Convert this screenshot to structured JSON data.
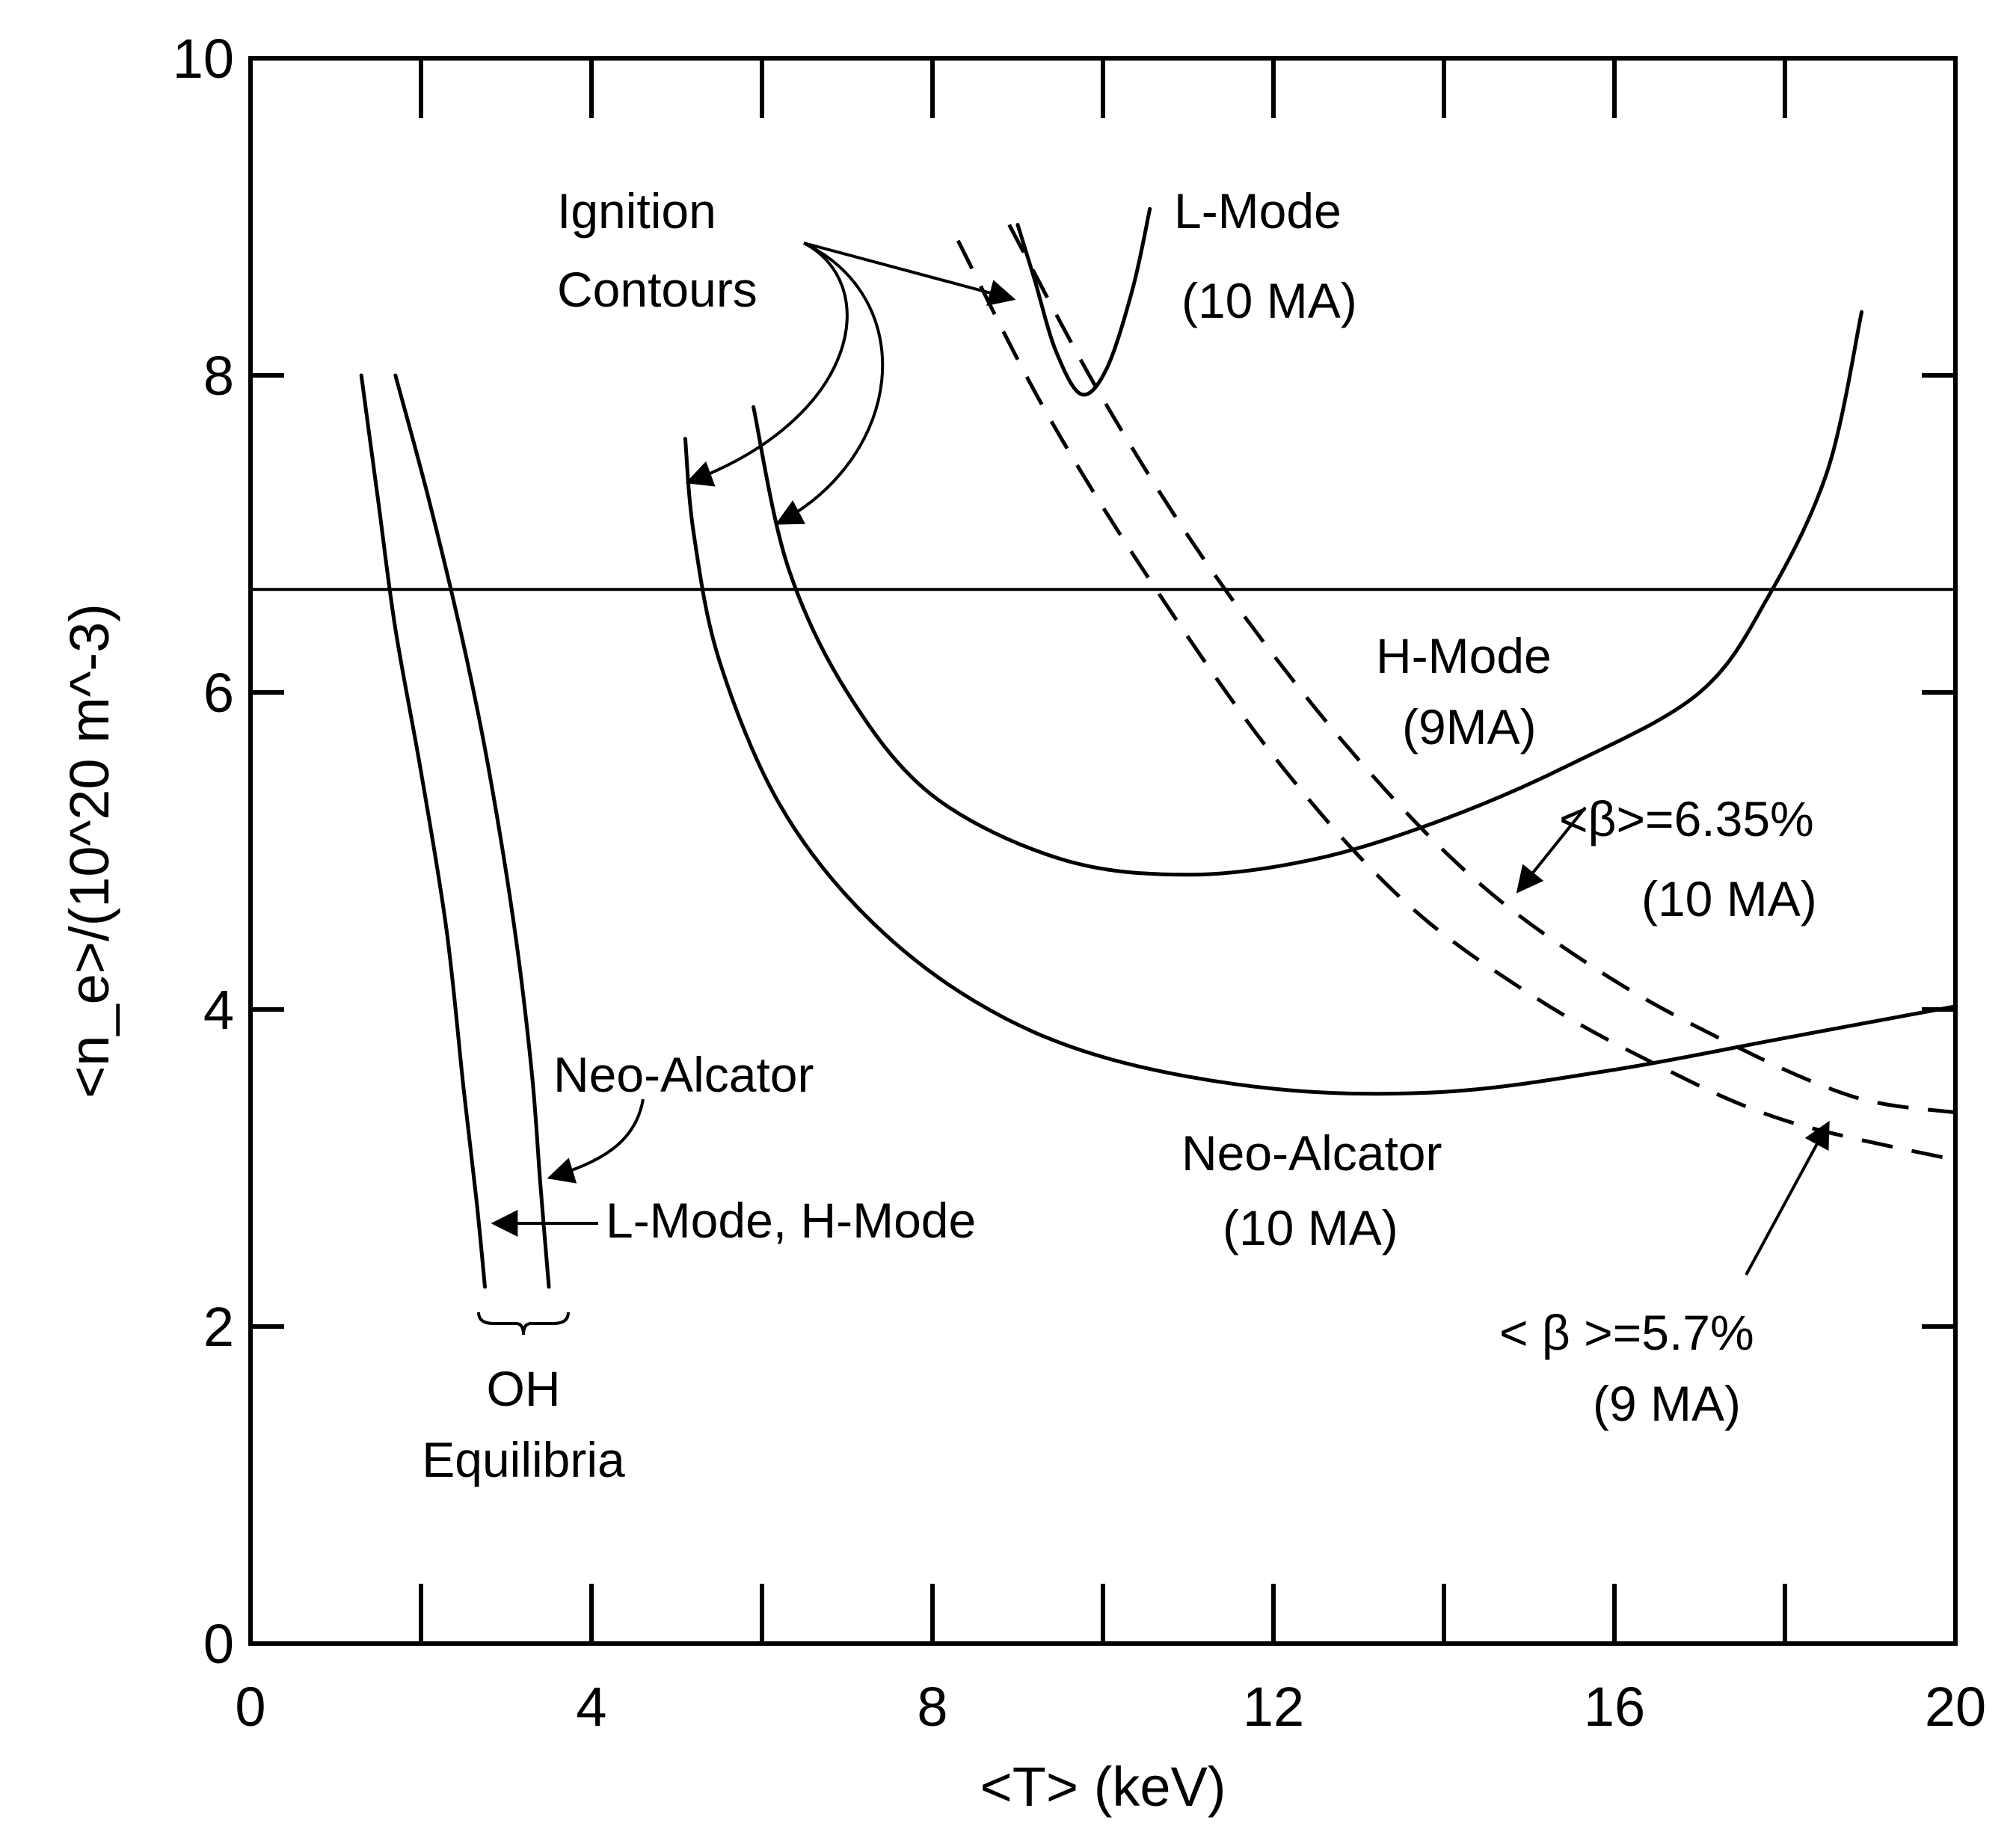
{
  "chart_data": {
    "type": "line",
    "title": "",
    "xlabel": "<T> (keV)",
    "ylabel": "<n_e>/(10^20 m^-3)",
    "xlim": [
      0,
      20
    ],
    "ylim": [
      0,
      10
    ],
    "x_ticks": [
      "0",
      "4",
      "8",
      "12",
      "16",
      "20"
    ],
    "y_ticks": [
      "0",
      "2",
      "4",
      "6",
      "8",
      "10"
    ],
    "grid": false,
    "reference_lines": [
      {
        "orientation": "horizontal",
        "y": 6.65
      }
    ],
    "series": [
      {
        "style": "solid",
        "points": [
          [
            1.3,
            8.0
          ],
          [
            1.5,
            7.2
          ],
          [
            1.7,
            6.4
          ],
          [
            2.0,
            5.5
          ],
          [
            2.3,
            4.5
          ],
          [
            2.5,
            3.5
          ],
          [
            2.65,
            2.8
          ],
          [
            2.75,
            2.25
          ]
        ]
      },
      {
        "style": "solid",
        "points": [
          [
            1.7,
            8.0
          ],
          [
            2.1,
            7.2
          ],
          [
            2.5,
            6.3
          ],
          [
            2.8,
            5.5
          ],
          [
            3.1,
            4.5
          ],
          [
            3.3,
            3.6
          ],
          [
            3.4,
            2.9
          ],
          [
            3.5,
            2.25
          ]
        ]
      },
      {
        "style": "solid",
        "points": [
          [
            5.1,
            7.6
          ],
          [
            5.2,
            7.0
          ],
          [
            5.5,
            6.2
          ],
          [
            6.2,
            5.3
          ],
          [
            7.2,
            4.6
          ],
          [
            8.5,
            4.05
          ],
          [
            10.0,
            3.7
          ],
          [
            12.0,
            3.5
          ],
          [
            14.0,
            3.48
          ],
          [
            16.0,
            3.62
          ],
          [
            18.0,
            3.82
          ],
          [
            20.0,
            4.02
          ]
        ]
      },
      {
        "style": "solid",
        "points": [
          [
            5.9,
            7.8
          ],
          [
            6.3,
            6.8
          ],
          [
            7.0,
            6.0
          ],
          [
            8.0,
            5.35
          ],
          [
            9.5,
            4.95
          ],
          [
            11.0,
            4.85
          ],
          [
            12.5,
            4.95
          ],
          [
            14.0,
            5.2
          ],
          [
            15.5,
            5.55
          ],
          [
            17.0,
            6.0
          ],
          [
            17.8,
            6.6
          ],
          [
            18.5,
            7.4
          ],
          [
            18.9,
            8.4
          ]
        ]
      },
      {
        "style": "solid",
        "points": [
          [
            9.0,
            8.95
          ],
          [
            9.2,
            8.6
          ],
          [
            9.45,
            8.15
          ],
          [
            9.75,
            7.88
          ],
          [
            10.05,
            8.05
          ],
          [
            10.35,
            8.55
          ],
          [
            10.55,
            9.05
          ]
        ]
      },
      {
        "style": "dashed",
        "points": [
          [
            8.3,
            8.85
          ],
          [
            9.3,
            7.8
          ],
          [
            10.5,
            6.75
          ],
          [
            12.0,
            5.6
          ],
          [
            13.5,
            4.7
          ],
          [
            15.0,
            4.1
          ],
          [
            16.5,
            3.65
          ],
          [
            18.0,
            3.3
          ],
          [
            20.0,
            3.05
          ]
        ]
      },
      {
        "style": "dashed",
        "points": [
          [
            8.9,
            8.95
          ],
          [
            10.0,
            7.85
          ],
          [
            11.3,
            6.75
          ],
          [
            12.8,
            5.7
          ],
          [
            14.3,
            4.85
          ],
          [
            15.8,
            4.25
          ],
          [
            17.3,
            3.8
          ],
          [
            18.8,
            3.45
          ],
          [
            20.0,
            3.35
          ]
        ]
      }
    ],
    "annotations": {
      "ignition_1": "Ignition",
      "ignition_2": "Contours",
      "lmode_1": "L-Mode",
      "lmode_2": "(10 MA)",
      "hmode_1": "H-Mode",
      "hmode_2": "(9MA)",
      "beta1_1": "<β>=6.35%",
      "beta1_2": "(10 MA)",
      "neo_left": "Neo-Alcator",
      "lh_mode": "L-Mode, H-Mode",
      "oh_1": "OH",
      "oh_2": "Equilibria",
      "neo_10_1": "Neo-Alcator",
      "neo_10_2": "(10 MA)",
      "beta2_1": "< β >=5.7%",
      "beta2_2": "(9 MA)"
    }
  }
}
